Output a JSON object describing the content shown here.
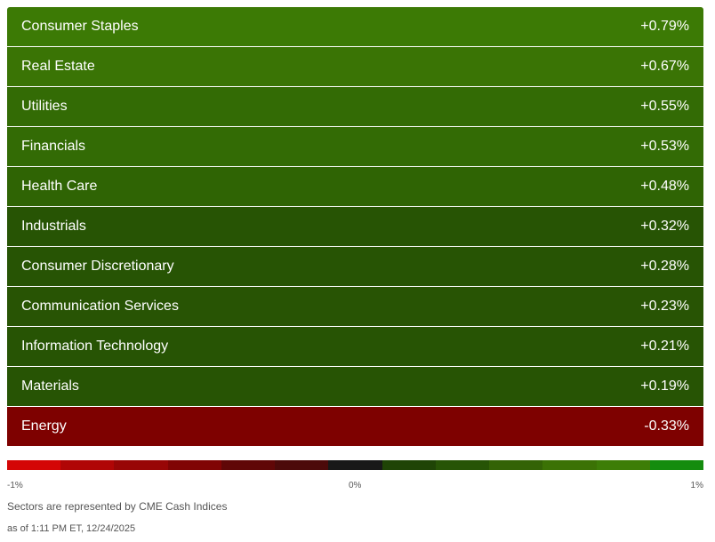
{
  "chart_data": {
    "type": "heatmap",
    "categories": [
      "Consumer Staples",
      "Real Estate",
      "Utilities",
      "Financials",
      "Health Care",
      "Industrials",
      "Consumer Discretionary",
      "Communication Services",
      "Information Technology",
      "Materials",
      "Energy"
    ],
    "values": [
      0.79,
      0.67,
      0.55,
      0.53,
      0.48,
      0.32,
      0.28,
      0.23,
      0.21,
      0.19,
      -0.33
    ],
    "labels": [
      "+0.79%",
      "+0.67%",
      "+0.55%",
      "+0.53%",
      "+0.48%",
      "+0.32%",
      "+0.28%",
      "+0.23%",
      "+0.21%",
      "+0.19%",
      "-0.33%"
    ],
    "colors": [
      "#3c7a05",
      "#3a7405",
      "#336b05",
      "#336b05",
      "#2f6404",
      "#275404",
      "#275404",
      "#285404",
      "#275404",
      "#275404",
      "#7e0100"
    ]
  },
  "legend": {
    "colors": [
      "#d40606",
      "#b00606",
      "#980606",
      "#800404",
      "#600707",
      "#4c0a0a",
      "#181818",
      "#1f4406",
      "#275406",
      "#336306",
      "#3b7205",
      "#3d7d07",
      "#148c0e"
    ],
    "ticks": [
      "-1%",
      "0%",
      "1%"
    ]
  },
  "footer": {
    "source": "Sectors are represented by CME Cash Indices",
    "asof": "as of 1:11 PM ET, 12/24/2025"
  }
}
